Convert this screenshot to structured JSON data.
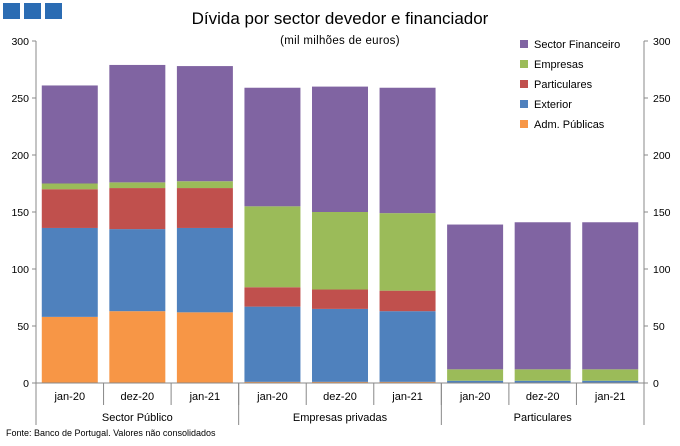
{
  "header": {
    "title": "Dívida por sector devedor e financiador",
    "subtitle": "(mil milhões de euros)"
  },
  "footer": {
    "source": "Fonte: Banco de Portugal. Valores não consolidados"
  },
  "colors": {
    "logo": "#2b6cb3",
    "axis": "#888888"
  },
  "chart_data": {
    "type": "stacked-bar",
    "title": "Dívida por sector devedor e financiador",
    "subtitle": "(mil milhões de euros)",
    "ylim": [
      0,
      300
    ],
    "yticks": [
      0,
      50,
      100,
      150,
      200,
      250,
      300
    ],
    "secondary_yticks": [
      0,
      50,
      100,
      150,
      200,
      250,
      300
    ],
    "grid": false,
    "legend_position": "top-right",
    "categories": [
      "jan-20",
      "dez-20",
      "jan-21",
      "jan-20",
      "dez-20",
      "jan-21",
      "jan-20",
      "dez-20",
      "jan-21"
    ],
    "groups": [
      {
        "label": "Sector Público",
        "count": 3
      },
      {
        "label": "Empresas privadas",
        "count": 3
      },
      {
        "label": "Particulares",
        "count": 3
      }
    ],
    "series": [
      {
        "name": "Adm. Públicas",
        "color": "#f79646",
        "values": [
          58,
          63,
          62,
          1,
          1,
          1,
          0,
          0,
          0
        ]
      },
      {
        "name": "Exterior",
        "color": "#4f81bd",
        "values": [
          78,
          72,
          74,
          66,
          64,
          62,
          2,
          2,
          2
        ]
      },
      {
        "name": "Particulares",
        "color": "#c0504d",
        "values": [
          34,
          36,
          35,
          17,
          17,
          18,
          0,
          0,
          0
        ]
      },
      {
        "name": "Empresas",
        "color": "#9bbb59",
        "values": [
          5,
          5,
          6,
          71,
          68,
          68,
          10,
          10,
          10
        ]
      },
      {
        "name": "Sector Financeiro",
        "color": "#8064a2",
        "values": [
          86,
          103,
          101,
          104,
          110,
          110,
          127,
          129,
          129
        ]
      }
    ]
  }
}
